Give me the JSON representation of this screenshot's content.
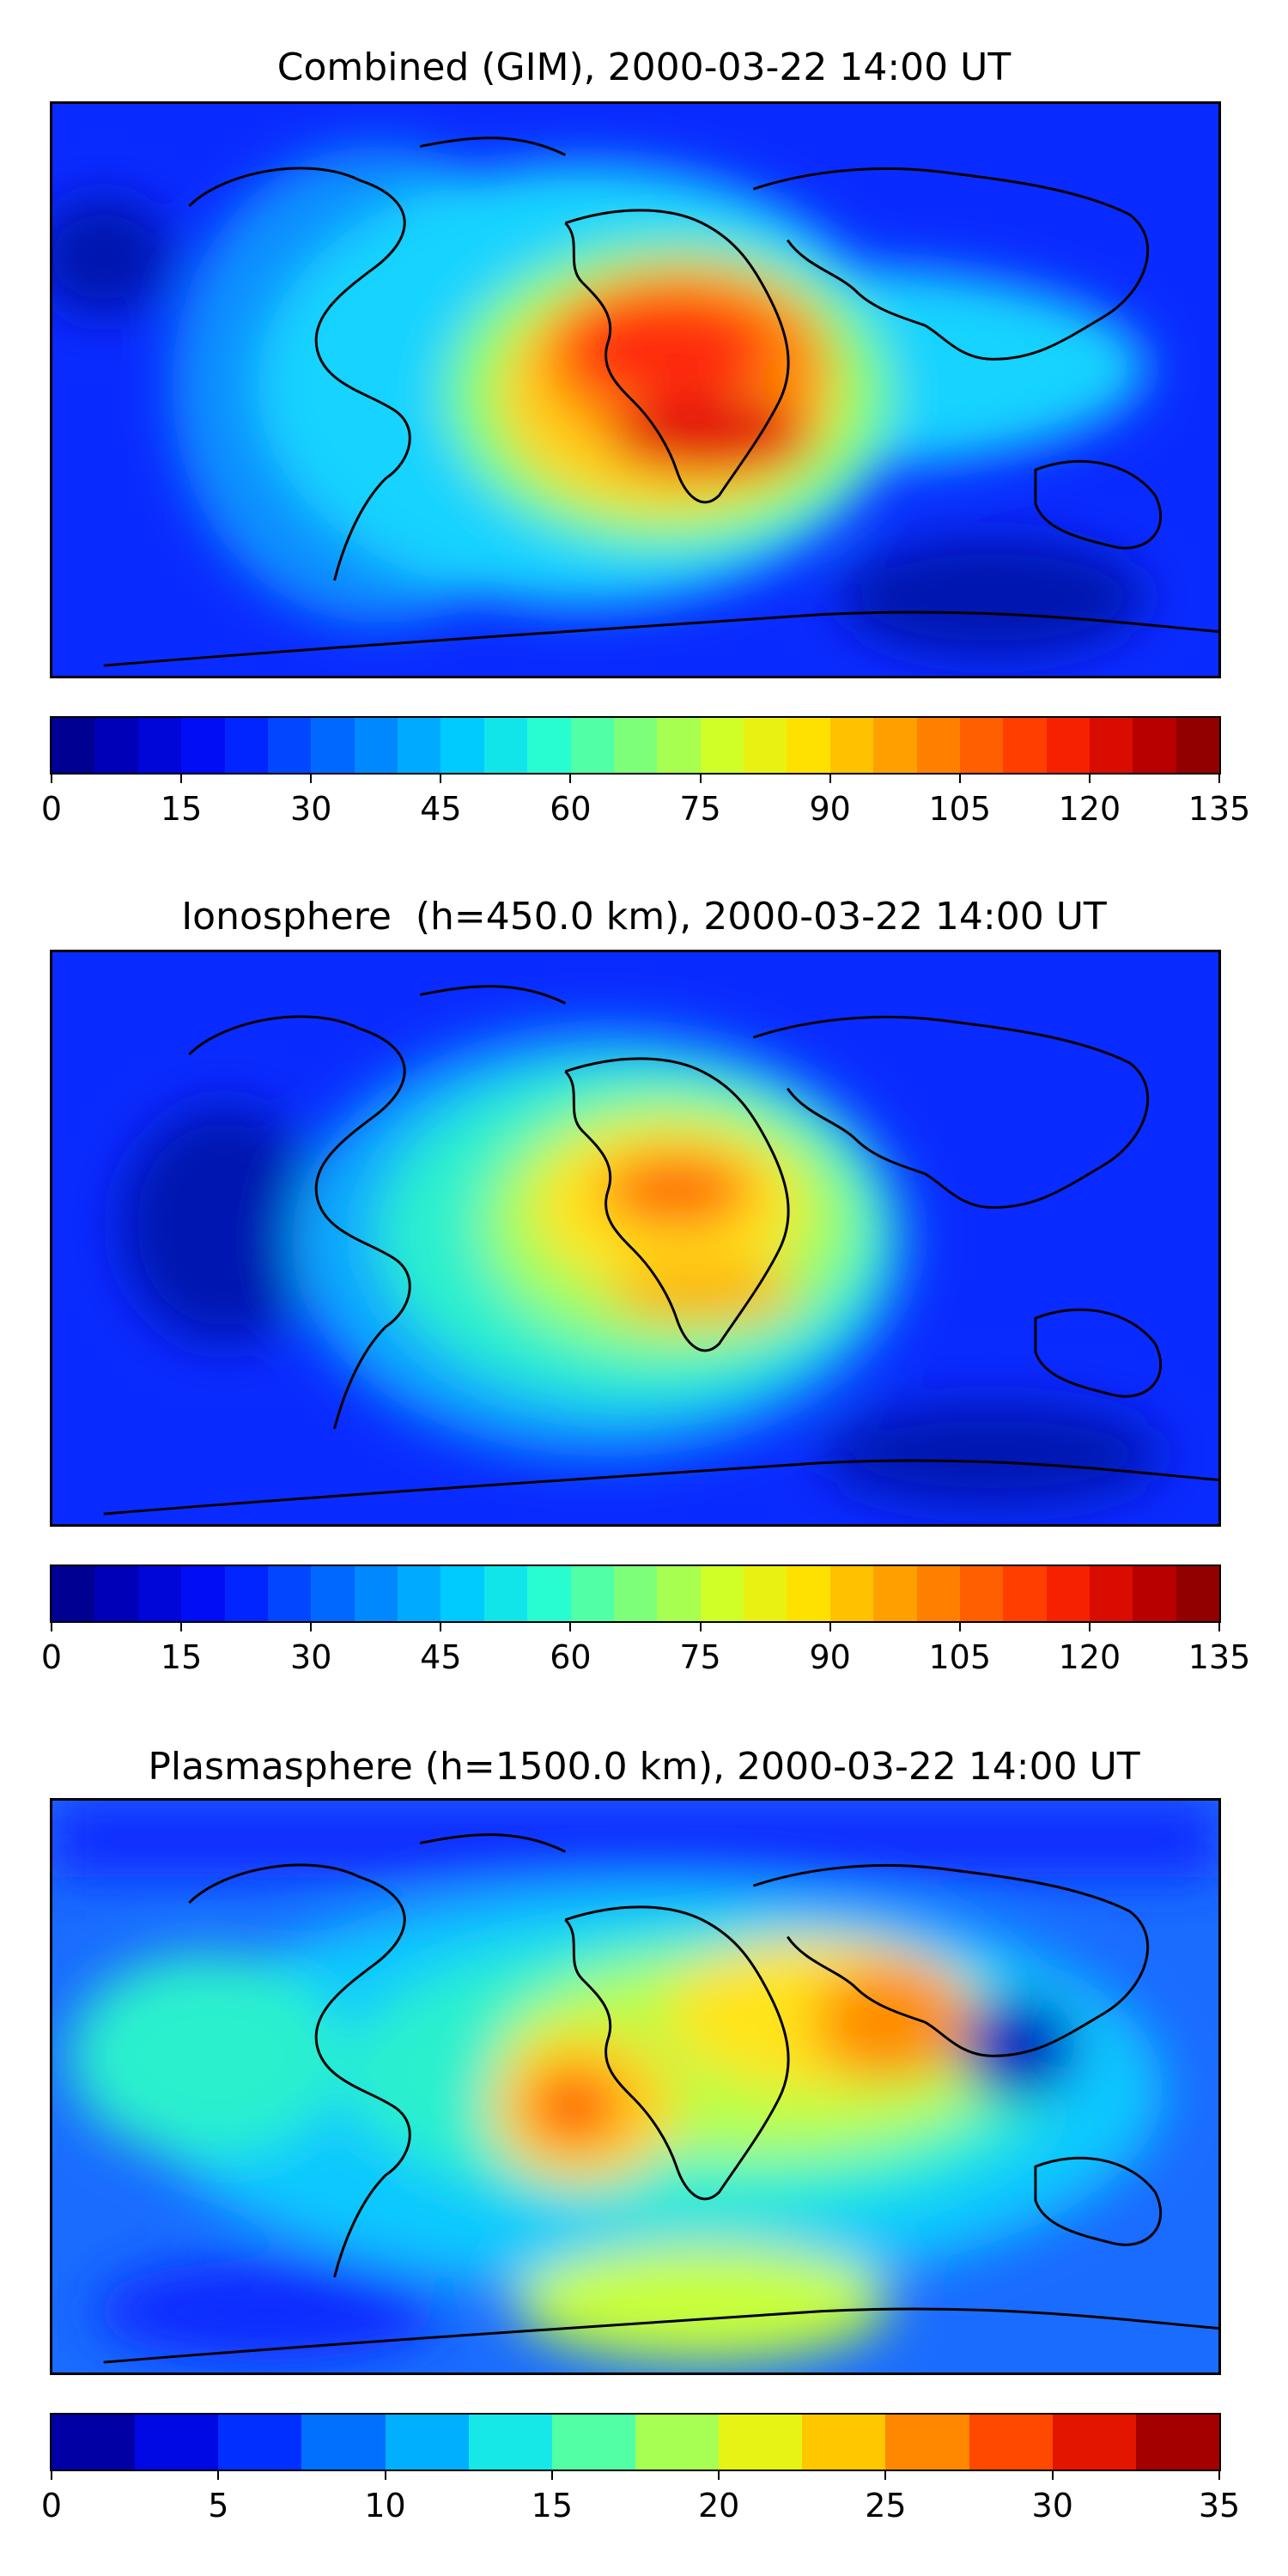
{
  "panels": [
    {
      "title": "Combined (GIM), 2000-03-22 14:00 UT",
      "colorbar": {
        "min": 0,
        "max": 135,
        "levels": 27,
        "ticks": [
          "0",
          "15",
          "30",
          "45",
          "60",
          "75",
          "90",
          "105",
          "120",
          "135"
        ]
      },
      "field": {
        "background": "#0a2bff",
        "blobs": [
          {
            "region": "atlantic-africa-broad",
            "color": "#20d8ff",
            "level": 55
          },
          {
            "region": "equatorial-belt",
            "color": "#88ff70",
            "level": 68
          },
          {
            "region": "africa-core",
            "color": "#ffd21a",
            "level": 90
          },
          {
            "region": "africa-north-peak",
            "color": "#ff3a10",
            "level": 125
          },
          {
            "region": "africa-south-peak",
            "color": "#e01010",
            "level": 120
          }
        ]
      }
    },
    {
      "title": "Ionosphere  (h=450.0 km), 2000-03-22 14:00 UT",
      "colorbar": {
        "min": 0,
        "max": 135,
        "levels": 27,
        "ticks": [
          "0",
          "15",
          "30",
          "45",
          "60",
          "75",
          "90",
          "105",
          "120",
          "135"
        ]
      },
      "field": {
        "background": "#0a2bff",
        "blobs": [
          {
            "region": "atlantic-africa-broad",
            "color": "#20d8ff",
            "level": 45
          },
          {
            "region": "equatorial-belt",
            "color": "#9bff5e",
            "level": 62
          },
          {
            "region": "africa-core",
            "color": "#ffe41a",
            "level": 85
          },
          {
            "region": "africa-north-peak",
            "color": "#ff5a10",
            "level": 105
          },
          {
            "region": "africa-south-peak",
            "color": "#ffae00",
            "level": 95
          }
        ]
      }
    },
    {
      "title": "Plasmasphere (h=1500.0 km), 2000-03-22 14:00 UT",
      "colorbar": {
        "min": 0,
        "max": 35,
        "levels": 14,
        "ticks": [
          "0",
          "5",
          "10",
          "15",
          "20",
          "25",
          "30",
          "35"
        ]
      },
      "field": {
        "background": "#1a8cff",
        "blobs": [
          {
            "region": "broad-mid",
            "color": "#20f0e0",
            "level": 15
          },
          {
            "region": "africa-india",
            "color": "#c8ff3a",
            "level": 21
          },
          {
            "region": "india-peak",
            "color": "#ff8c00",
            "level": 27
          },
          {
            "region": "atlantic-peak",
            "color": "#ff5a10",
            "level": 30
          },
          {
            "region": "philippines-low",
            "color": "#0018c0",
            "level": 3
          }
        ]
      }
    }
  ],
  "colormap": [
    "#00007f",
    "#0000c8",
    "#0010ff",
    "#0050ff",
    "#0090ff",
    "#00d0ff",
    "#29ffce",
    "#7dff7a",
    "#ceff29",
    "#ffe600",
    "#ffa700",
    "#ff6800",
    "#ff2900",
    "#c80000",
    "#7f0000"
  ]
}
